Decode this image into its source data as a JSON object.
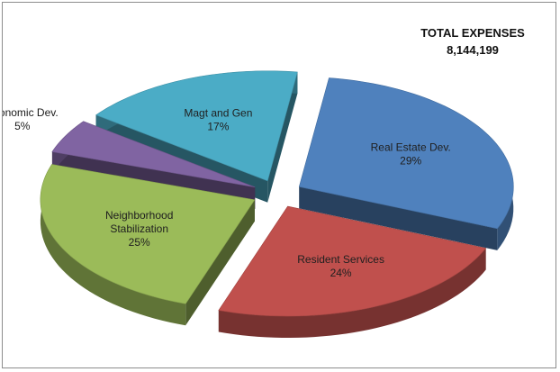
{
  "chart_data": {
    "type": "pie",
    "title": "TOTAL EXPENSES",
    "total": "8,144,199",
    "slices": [
      {
        "name": "Real Estate Dev.",
        "percent": 29,
        "label": "29%",
        "color": "#4f81bd"
      },
      {
        "name": "Resident Services",
        "percent": 24,
        "label": "24%",
        "color": "#c0504d"
      },
      {
        "name": "Neighborhood Stabilization",
        "percent": 25,
        "label": "25%",
        "color": "#9bbb59"
      },
      {
        "name": "Economic Dev.",
        "percent": 5,
        "label": "5%",
        "color": "#8064a2"
      },
      {
        "name": "Magt and Gen",
        "percent": 17,
        "label": "17%",
        "color": "#4bacc6"
      }
    ],
    "style": "3d-exploded"
  }
}
